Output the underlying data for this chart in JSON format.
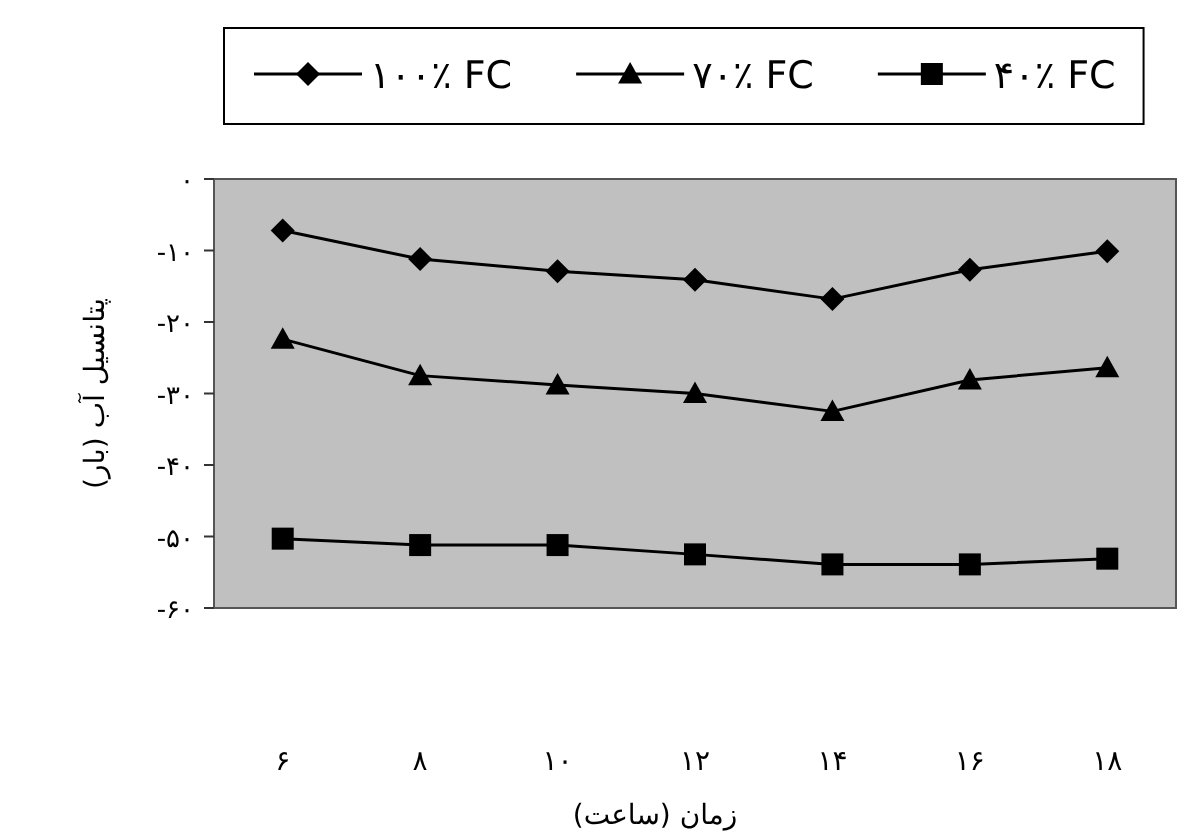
{
  "chart_data": {
    "type": "line",
    "xlabel": "زمان (ساعت)",
    "ylabel": "پتانسیل آب (بار)",
    "categories": [
      "۶",
      "۸",
      "۱۰",
      "۱۲",
      "۱۴",
      "۱۶",
      "۱۸"
    ],
    "series": [
      {
        "name": "۱۰۰٪ FC",
        "color": "#000000",
        "marker": "diamond",
        "values": [
          -7.2,
          -11.2,
          -12.9,
          -14.1,
          -16.8,
          -12.7,
          -10.1
        ]
      },
      {
        "name": "۷۰٪ FC",
        "color": "#000000",
        "marker": "triangle",
        "values": [
          -22.4,
          -27.5,
          -28.8,
          -30.0,
          -32.5,
          -28.1,
          -26.4
        ]
      },
      {
        "name": "۴۰٪ FC",
        "color": "#000000",
        "marker": "square",
        "values": [
          -50.3,
          -51.2,
          -51.2,
          -52.5,
          -53.9,
          -53.9,
          -53.1
        ]
      }
    ],
    "ylim": [
      -60,
      0
    ],
    "yticks": [
      {
        "value": 0,
        "label": "۰"
      },
      {
        "value": -10,
        "label": "-۱۰"
      },
      {
        "value": -20,
        "label": "-۲۰"
      },
      {
        "value": -30,
        "label": "-۳۰"
      },
      {
        "value": -40,
        "label": "-۴۰"
      },
      {
        "value": -50,
        "label": "-۵۰"
      },
      {
        "value": -60,
        "label": "-۶۰"
      }
    ],
    "legend": "top",
    "line_style": "solid"
  }
}
